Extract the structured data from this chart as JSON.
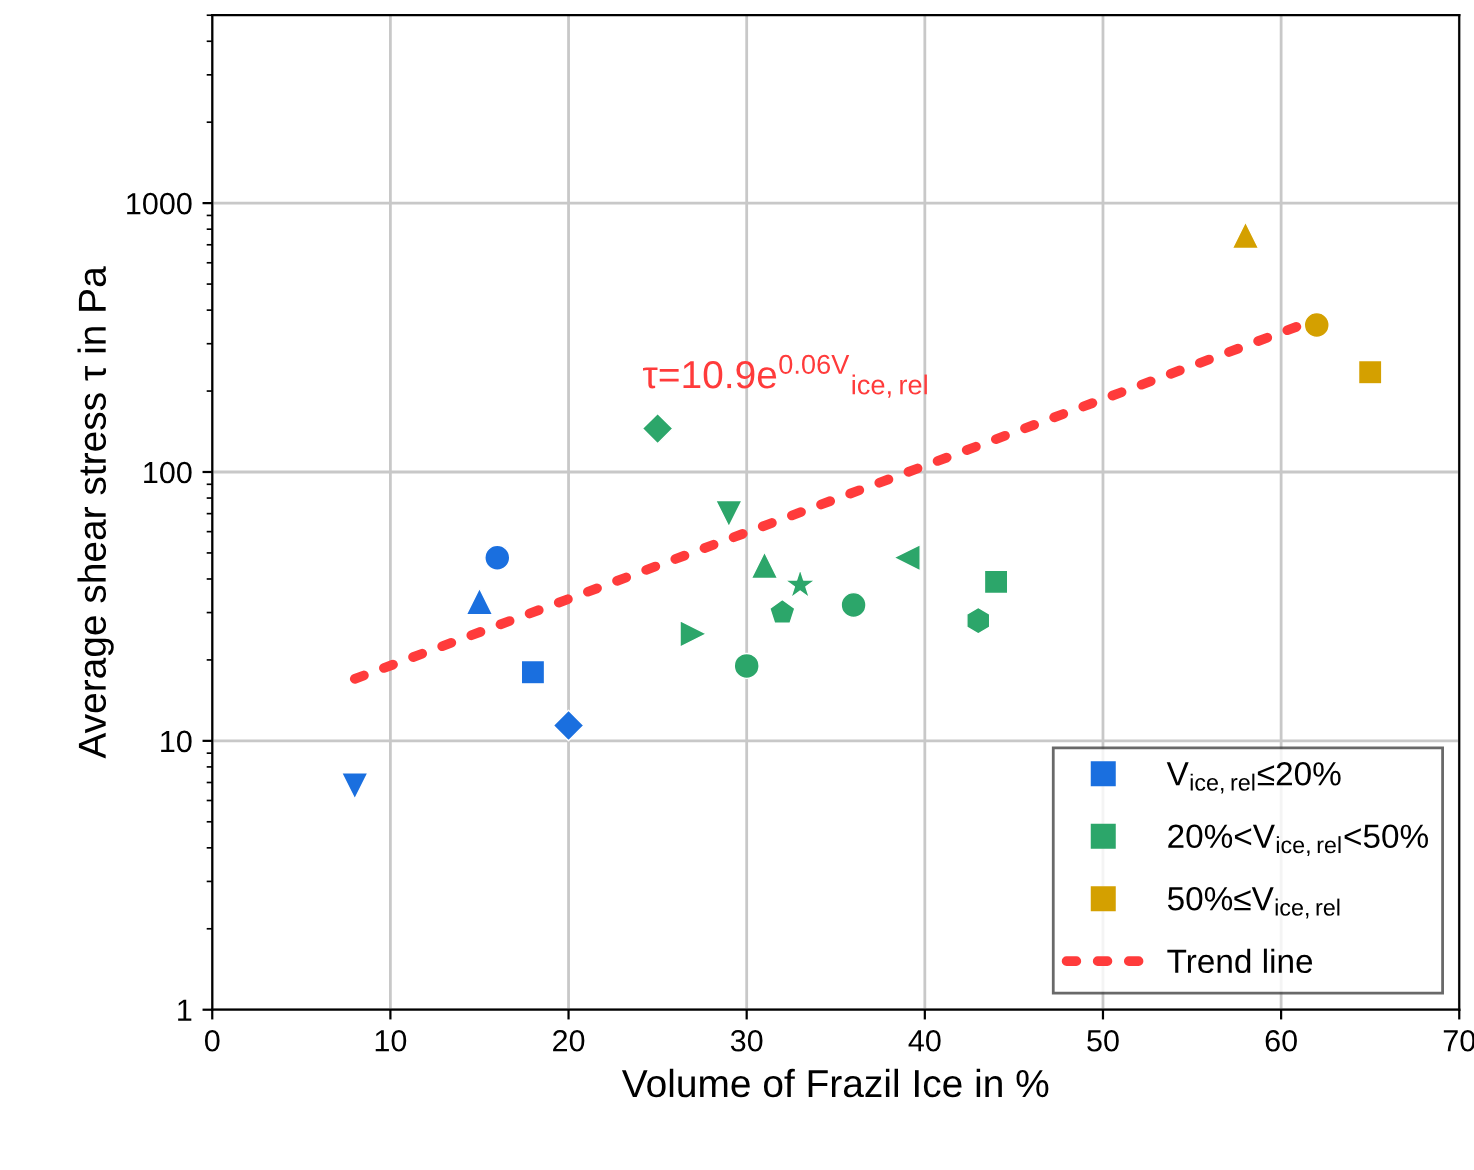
{
  "chart_data": {
    "type": "scatter",
    "xlabel": "Volume of Frazil Ice in %",
    "ylabel": "Average shear stress τ in Pa",
    "series": [
      {
        "name": "V$_{ice,rel}$≤20%",
        "color": "#1a6fdf",
        "x": [
          8,
          16,
          15,
          18,
          20
        ],
        "values": [
          6.8,
          48,
          33,
          18,
          11.4
        ],
        "marker": [
          "triangle_down",
          "circle",
          "triangle",
          "square",
          "diamond"
        ]
      },
      {
        "name": "20%<V$_{ice,rel}$<50%",
        "color": "#2ca66a",
        "x": [
          25,
          29,
          31,
          33,
          32,
          27,
          30,
          36,
          39,
          44,
          43
        ],
        "values": [
          145,
          70,
          45,
          38,
          30,
          25,
          19,
          32,
          48,
          39,
          28
        ],
        "marker": [
          "diamond",
          "triangle_down",
          "triangle",
          "star",
          "pentagon",
          "triangle_right",
          "circle",
          "circle",
          "triangle_left",
          "square",
          "hexagon"
        ]
      },
      {
        "name": "50%≤V$_{ice,rel}$",
        "color": "#d4a000",
        "x": [
          58,
          62,
          65
        ],
        "values": [
          760,
          352,
          235
        ],
        "marker": [
          "triangle",
          "circle",
          "square"
        ]
      },
      {
        "name": "Trend line",
        "type": "line",
        "color": "#ff3b3b",
        "x": [
          8,
          62
        ],
        "values": [
          17,
          370
        ],
        "line_style": "dotted"
      }
    ],
    "annotations": [
      "τ=10.9e$^{0.06V}$$_{ice,rel}$"
    ],
    "log": "y",
    "xlim": [
      0,
      70
    ],
    "xticks": [
      0,
      10,
      20,
      30,
      40,
      50,
      60,
      70
    ],
    "ylim": [
      1,
      5000
    ],
    "yticks": [
      1,
      10,
      100,
      1000
    ],
    "grid": true,
    "legend": "bottom right"
  }
}
